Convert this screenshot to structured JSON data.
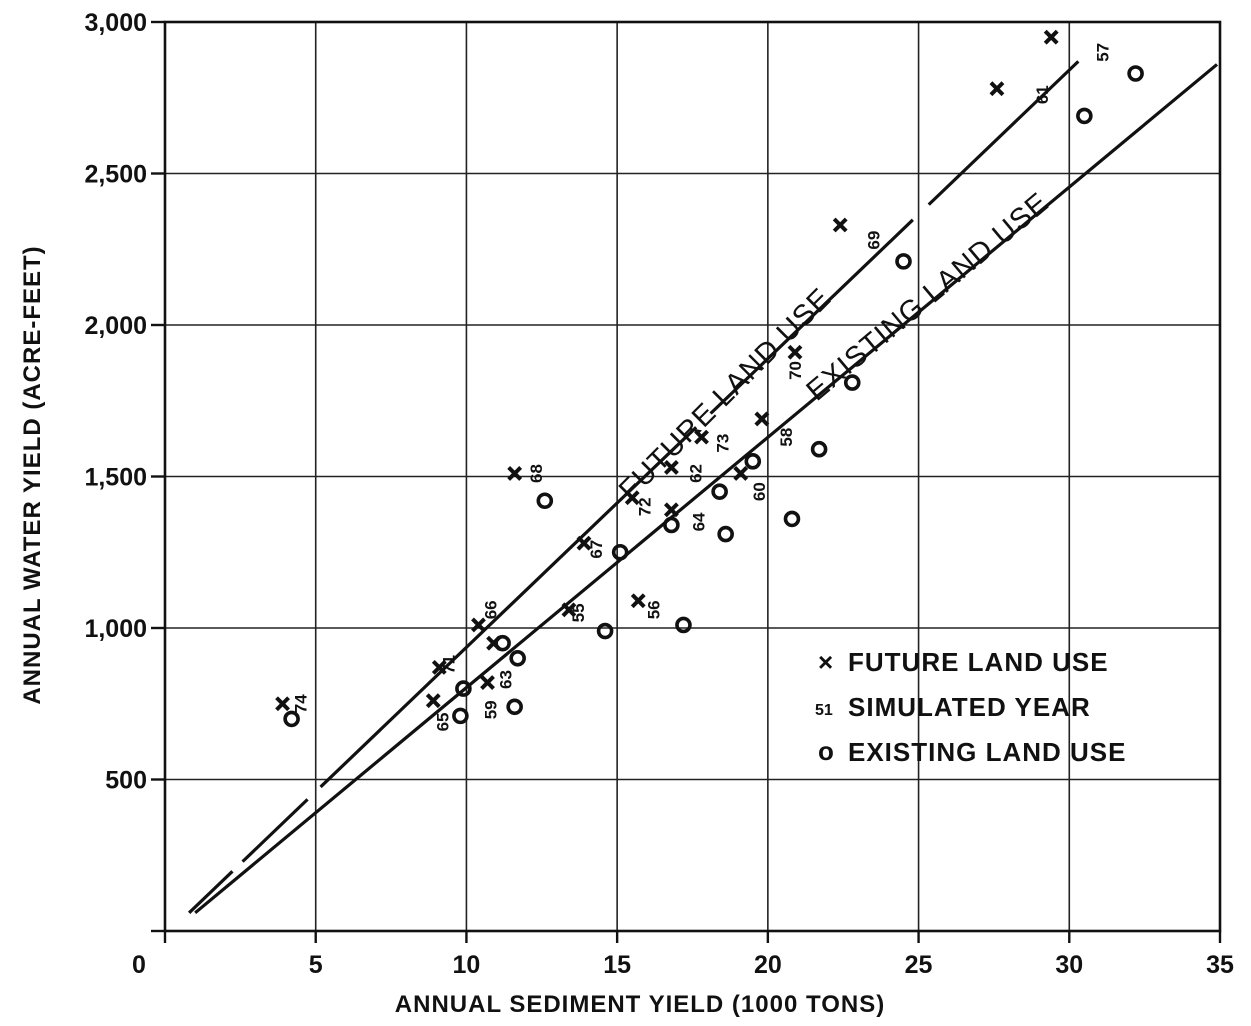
{
  "chart_data": {
    "type": "scatter",
    "xlabel": "ANNUAL SEDIMENT YIELD (1000 TONS)",
    "ylabel": "ANNUAL WATER YIELD (ACRE-FEET)",
    "xlim": [
      0,
      35
    ],
    "ylim": [
      0,
      3000
    ],
    "x_ticks": [
      0,
      5,
      10,
      15,
      20,
      25,
      30,
      35
    ],
    "x_tick_labels": [
      "0",
      "5",
      "10",
      "15",
      "20",
      "25",
      "30",
      "35"
    ],
    "y_ticks": [
      500,
      1000,
      1500,
      2000,
      2500,
      3000
    ],
    "y_tick_labels": [
      "500",
      "1,000",
      "1,500",
      "2,000",
      "2,500",
      "3,000"
    ],
    "grid": true,
    "legend_position": "bottom-right",
    "legend": [
      {
        "symbol": "×",
        "label": "FUTURE LAND USE"
      },
      {
        "symbol": "51",
        "label": "SIMULATED YEAR"
      },
      {
        "symbol": "o",
        "label": "EXISTING LAND USE"
      }
    ],
    "series": [
      {
        "name": "FUTURE LAND USE",
        "marker": "x",
        "points": [
          {
            "x": 3.9,
            "y": 750
          },
          {
            "x": 8.9,
            "y": 760
          },
          {
            "x": 9.1,
            "y": 870
          },
          {
            "x": 10.7,
            "y": 820
          },
          {
            "x": 10.9,
            "y": 950
          },
          {
            "x": 10.4,
            "y": 1010
          },
          {
            "x": 13.4,
            "y": 1060
          },
          {
            "x": 15.7,
            "y": 1090
          },
          {
            "x": 13.9,
            "y": 1280
          },
          {
            "x": 11.6,
            "y": 1510
          },
          {
            "x": 15.5,
            "y": 1430
          },
          {
            "x": 16.8,
            "y": 1390
          },
          {
            "x": 16.8,
            "y": 1530
          },
          {
            "x": 17.8,
            "y": 1630
          },
          {
            "x": 19.1,
            "y": 1510
          },
          {
            "x": 19.8,
            "y": 1690
          },
          {
            "x": 20.9,
            "y": 1910
          },
          {
            "x": 22.4,
            "y": 2330
          },
          {
            "x": 27.6,
            "y": 2780
          },
          {
            "x": 29.4,
            "y": 2950
          }
        ]
      },
      {
        "name": "EXISTING LAND USE",
        "marker": "o",
        "points": [
          {
            "x": 4.2,
            "y": 700
          },
          {
            "x": 9.8,
            "y": 710
          },
          {
            "x": 9.9,
            "y": 800
          },
          {
            "x": 11.2,
            "y": 950
          },
          {
            "x": 11.7,
            "y": 900
          },
          {
            "x": 11.6,
            "y": 740
          },
          {
            "x": 12.6,
            "y": 1420
          },
          {
            "x": 14.6,
            "y": 990
          },
          {
            "x": 15.1,
            "y": 1250
          },
          {
            "x": 17.2,
            "y": 1010
          },
          {
            "x": 16.8,
            "y": 1340
          },
          {
            "x": 18.4,
            "y": 1450
          },
          {
            "x": 18.6,
            "y": 1310
          },
          {
            "x": 19.5,
            "y": 1550
          },
          {
            "x": 20.8,
            "y": 1360
          },
          {
            "x": 21.7,
            "y": 1590
          },
          {
            "x": 22.8,
            "y": 1810
          },
          {
            "x": 24.5,
            "y": 2210
          },
          {
            "x": 30.5,
            "y": 2690
          },
          {
            "x": 32.2,
            "y": 2830
          }
        ]
      }
    ],
    "year_labels": [
      {
        "text": "74",
        "x": 4.7,
        "y": 750
      },
      {
        "text": "65",
        "x": 9.4,
        "y": 690
      },
      {
        "text": "71",
        "x": 9.6,
        "y": 880
      },
      {
        "text": "59",
        "x": 11.0,
        "y": 730
      },
      {
        "text": "63",
        "x": 11.5,
        "y": 830
      },
      {
        "text": "66",
        "x": 11.0,
        "y": 1060
      },
      {
        "text": "55",
        "x": 13.9,
        "y": 1050
      },
      {
        "text": "56",
        "x": 16.4,
        "y": 1060
      },
      {
        "text": "67",
        "x": 14.5,
        "y": 1260
      },
      {
        "text": "68",
        "x": 12.5,
        "y": 1510
      },
      {
        "text": "72",
        "x": 16.1,
        "y": 1400
      },
      {
        "text": "64",
        "x": 17.9,
        "y": 1350
      },
      {
        "text": "62",
        "x": 17.8,
        "y": 1510
      },
      {
        "text": "73",
        "x": 18.7,
        "y": 1610
      },
      {
        "text": "60",
        "x": 19.9,
        "y": 1450
      },
      {
        "text": "58",
        "x": 20.8,
        "y": 1630
      },
      {
        "text": "70",
        "x": 21.1,
        "y": 1850
      },
      {
        "text": "69",
        "x": 23.7,
        "y": 2280
      },
      {
        "text": "61",
        "x": 29.3,
        "y": 2760
      },
      {
        "text": "57",
        "x": 31.3,
        "y": 2900
      }
    ],
    "fit_lines": [
      {
        "name": "FUTURE LAND USE",
        "from": {
          "x": 0.8,
          "y": 60
        },
        "to": {
          "x": 30.3,
          "y": 2870
        },
        "style": "dashed-segments"
      },
      {
        "name": "EXISTING LAND USE",
        "from": {
          "x": 1.0,
          "y": 60
        },
        "to": {
          "x": 34.9,
          "y": 2860
        },
        "style": "solid"
      }
    ],
    "line_labels": [
      {
        "text": "FUTURE LAND USE",
        "x": 18.8,
        "y": 1750,
        "angle": -45
      },
      {
        "text": "EXISTING LAND USE",
        "x": 25.5,
        "y": 2070,
        "angle": -40
      }
    ]
  }
}
